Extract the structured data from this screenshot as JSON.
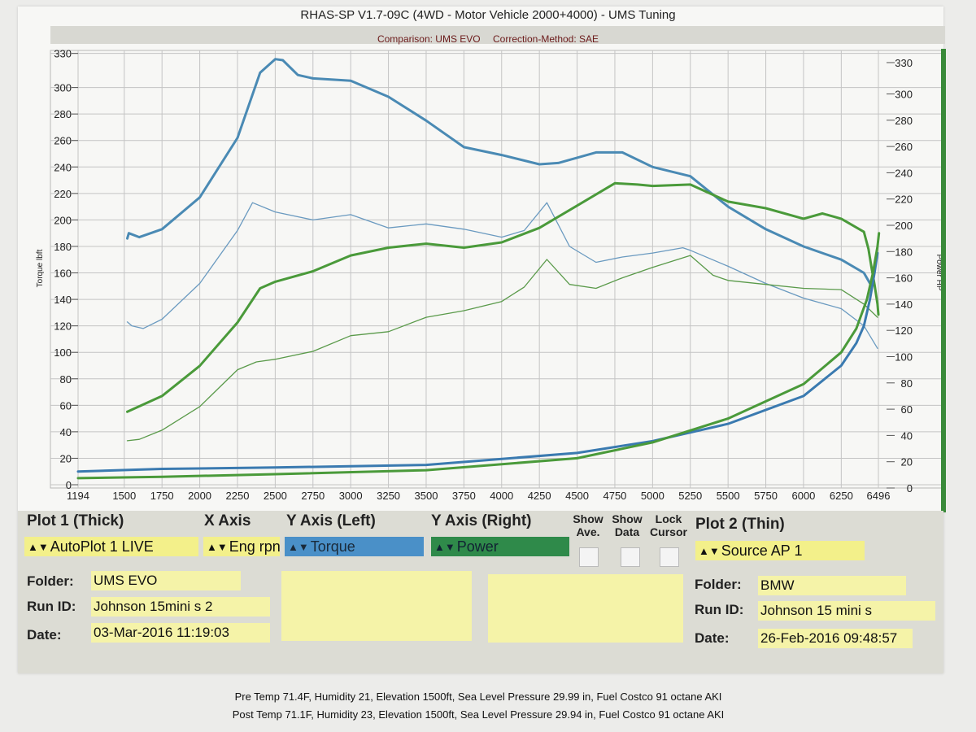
{
  "header": {
    "title": "RHAS-SP V1.7-09C  (4WD - Motor Vehicle 2000+4000) - UMS Tuning",
    "comparison": "Comparison: UMS EVO",
    "correction": "Correction-Method: SAE"
  },
  "chart_data": {
    "type": "line",
    "x_ticks": [
      "1194",
      "1500",
      "1750",
      "2000",
      "2250",
      "2500",
      "2750",
      "3000",
      "3250",
      "3500",
      "3750",
      "4000",
      "4250",
      "4500",
      "4750",
      "5000",
      "5250",
      "5500",
      "5750",
      "6000",
      "6250",
      "6496"
    ],
    "xlim": [
      1194,
      6496
    ],
    "y_left": {
      "label": "Torque lbft",
      "ticks": [
        "330",
        "300",
        "280",
        "260",
        "240",
        "220",
        "200",
        "180",
        "160",
        "140",
        "120",
        "100",
        "80",
        "60",
        "40",
        "20",
        "0"
      ],
      "lim": [
        0,
        330
      ]
    },
    "y_right": {
      "label": "Power HP",
      "ticks": [
        "330",
        "300",
        "280",
        "260",
        "240",
        "220",
        "200",
        "180",
        "160",
        "140",
        "120",
        "100",
        "80",
        "60",
        "40",
        "20",
        "0"
      ],
      "lim": [
        0,
        330
      ]
    },
    "grid": true,
    "series": [
      {
        "axis": "left",
        "color": "#4a8ab4",
        "width": 3,
        "points": [
          [
            1520,
            186
          ],
          [
            1530,
            190
          ],
          [
            1600,
            187
          ],
          [
            1750,
            193
          ],
          [
            2000,
            217
          ],
          [
            2250,
            262
          ],
          [
            2400,
            313
          ],
          [
            2500,
            325
          ],
          [
            2550,
            324
          ],
          [
            2650,
            311
          ],
          [
            2750,
            308
          ],
          [
            3000,
            306
          ],
          [
            3250,
            293
          ],
          [
            3500,
            275
          ],
          [
            3750,
            255
          ],
          [
            4000,
            249
          ],
          [
            4250,
            242
          ],
          [
            4375,
            243
          ],
          [
            4500,
            247
          ],
          [
            4625,
            251
          ],
          [
            4800,
            251
          ],
          [
            5000,
            240
          ],
          [
            5250,
            233
          ],
          [
            5500,
            210
          ],
          [
            5750,
            193
          ],
          [
            6000,
            180
          ],
          [
            6250,
            170
          ],
          [
            6400,
            160
          ],
          [
            6450,
            150
          ]
        ]
      },
      {
        "axis": "left",
        "color": "#6a9ac0",
        "width": 1.3,
        "points": [
          [
            1520,
            123
          ],
          [
            1550,
            120
          ],
          [
            1625,
            118
          ],
          [
            1750,
            125
          ],
          [
            2000,
            152
          ],
          [
            2250,
            192
          ],
          [
            2350,
            213
          ],
          [
            2500,
            206
          ],
          [
            2750,
            200
          ],
          [
            3000,
            204
          ],
          [
            3250,
            194
          ],
          [
            3500,
            197
          ],
          [
            3750,
            193
          ],
          [
            4000,
            187
          ],
          [
            4150,
            192
          ],
          [
            4300,
            213
          ],
          [
            4450,
            180
          ],
          [
            4625,
            168
          ],
          [
            4800,
            172
          ],
          [
            5000,
            175
          ],
          [
            5200,
            179
          ],
          [
            5250,
            177
          ],
          [
            5500,
            165
          ],
          [
            5750,
            152
          ],
          [
            6000,
            141
          ],
          [
            6250,
            133
          ],
          [
            6400,
            120
          ],
          [
            6490,
            103
          ]
        ]
      },
      {
        "axis": "right",
        "color": "#4a9a3a",
        "width": 3,
        "points": [
          [
            1520,
            58
          ],
          [
            1750,
            70
          ],
          [
            2000,
            93
          ],
          [
            2250,
            126
          ],
          [
            2400,
            152
          ],
          [
            2500,
            157
          ],
          [
            2750,
            165
          ],
          [
            3000,
            177
          ],
          [
            3250,
            183
          ],
          [
            3500,
            186
          ],
          [
            3750,
            183
          ],
          [
            4000,
            187
          ],
          [
            4250,
            198
          ],
          [
            4500,
            215
          ],
          [
            4750,
            232
          ],
          [
            4900,
            231
          ],
          [
            5000,
            230
          ],
          [
            5250,
            231
          ],
          [
            5500,
            218
          ],
          [
            5750,
            213
          ],
          [
            6000,
            205
          ],
          [
            6125,
            209
          ],
          [
            6250,
            205
          ],
          [
            6400,
            195
          ],
          [
            6430,
            182
          ],
          [
            6450,
            168
          ],
          [
            6470,
            155
          ],
          [
            6490,
            140
          ],
          [
            6496,
            132
          ]
        ]
      },
      {
        "axis": "right",
        "color": "#5a9a4a",
        "width": 1.3,
        "points": [
          [
            1520,
            36
          ],
          [
            1600,
            37
          ],
          [
            1750,
            44
          ],
          [
            2000,
            62
          ],
          [
            2250,
            90
          ],
          [
            2375,
            96
          ],
          [
            2500,
            98
          ],
          [
            2750,
            104
          ],
          [
            3000,
            116
          ],
          [
            3250,
            119
          ],
          [
            3500,
            130
          ],
          [
            3750,
            135
          ],
          [
            4000,
            142
          ],
          [
            4150,
            153
          ],
          [
            4300,
            174
          ],
          [
            4450,
            155
          ],
          [
            4625,
            152
          ],
          [
            4800,
            160
          ],
          [
            5000,
            168
          ],
          [
            5250,
            177
          ],
          [
            5400,
            162
          ],
          [
            5500,
            158
          ],
          [
            5750,
            155
          ],
          [
            6000,
            152
          ],
          [
            6250,
            151
          ],
          [
            6400,
            140
          ],
          [
            6490,
            130
          ]
        ]
      },
      {
        "axis": "left",
        "color": "#3a7ab0",
        "width": 3,
        "points": [
          [
            1194,
            10
          ],
          [
            1750,
            12
          ],
          [
            2500,
            13
          ],
          [
            3500,
            15
          ],
          [
            4500,
            24
          ],
          [
            5000,
            33
          ],
          [
            5500,
            46
          ],
          [
            6000,
            67
          ],
          [
            6250,
            90
          ],
          [
            6350,
            107
          ],
          [
            6400,
            120
          ],
          [
            6440,
            140
          ],
          [
            6470,
            160
          ],
          [
            6490,
            175
          ]
        ]
      },
      {
        "axis": "left",
        "color": "#4a9a3a",
        "width": 3,
        "points": [
          [
            1194,
            5
          ],
          [
            1750,
            6
          ],
          [
            2500,
            8
          ],
          [
            3500,
            11
          ],
          [
            4500,
            20
          ],
          [
            5000,
            32
          ],
          [
            5500,
            50
          ],
          [
            6000,
            76
          ],
          [
            6250,
            100
          ],
          [
            6350,
            118
          ],
          [
            6420,
            140
          ],
          [
            6460,
            160
          ],
          [
            6490,
            180
          ],
          [
            6500,
            190
          ]
        ]
      }
    ]
  },
  "panel": {
    "plot1_label": "Plot 1 (Thick)",
    "xaxis_label": "X Axis",
    "yleft_label": "Y Axis (Left)",
    "yright_label": "Y Axis (Right)",
    "show_ave_label": "Show\nAve.",
    "show_data_label": "Show\nData",
    "lock_cursor_label": "Lock\nCursor",
    "plot2_label": "Plot 2 (Thin)",
    "plot1_select": "AutoPlot 1 LIVE",
    "xaxis_select": "Eng rpn",
    "yleft_select": "Torque",
    "yright_select": "Power",
    "plot2_select": "Source AP 1",
    "folder_label": "Folder:",
    "runid_label": "Run ID:",
    "date_label": "Date:",
    "plot1_folder": "UMS EVO",
    "plot1_runid": "Johnson 15mini s 2",
    "plot1_date": "03-Mar-2016  11:19:03",
    "plot2_folder": "BMW",
    "plot2_runid": "Johnson 15 mini s",
    "plot2_date": "26-Feb-2016  09:48:57"
  },
  "notes": {
    "pre": "Pre Temp 71.4F, Humidity 21, Elevation 1500ft, Sea Level Pressure 29.99 in, Fuel Costco 91 octane AKI",
    "post": "Post Temp 71.1F, Humidity 23, Elevation 1500ft, Sea Level Pressure 29.94 in, Fuel Costco 91 octane AKI"
  }
}
